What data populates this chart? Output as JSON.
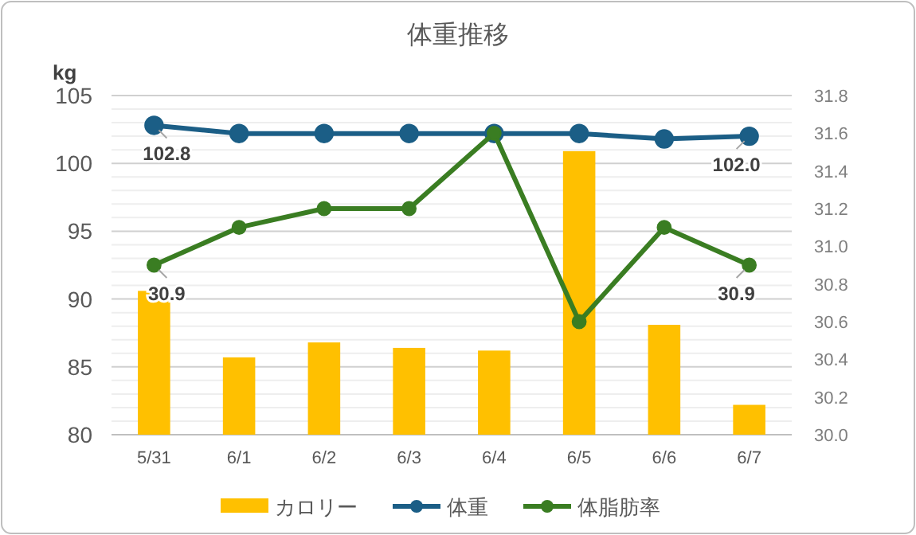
{
  "chart_data": {
    "type": "bar",
    "title": "体重推移",
    "ylabel": "kg",
    "categories": [
      "5/31",
      "6/1",
      "6/2",
      "6/3",
      "6/4",
      "6/5",
      "6/6",
      "6/7"
    ],
    "series": [
      {
        "name": "カロリー",
        "color": "#ffc000",
        "values": [
          90.6,
          85.7,
          86.8,
          86.4,
          86.2,
          100.9,
          88.1,
          82.2
        ]
      },
      {
        "name": "体重",
        "type": "line",
        "color": "#1b5e86",
        "marker": "circle",
        "values": [
          102.8,
          102.2,
          102.2,
          102.2,
          102.2,
          102.2,
          101.8,
          102.0
        ],
        "value_labels": [
          "102.8",
          null,
          null,
          null,
          null,
          null,
          null,
          "102.0"
        ]
      },
      {
        "name": "体脂肪率",
        "type": "line",
        "axis": "y2",
        "color": "#3a7d22",
        "marker": "circle",
        "values": [
          30.9,
          31.1,
          31.2,
          31.2,
          31.6,
          30.6,
          31.1,
          30.9
        ],
        "value_labels": [
          "30.9",
          null,
          null,
          null,
          null,
          null,
          null,
          "30.9"
        ]
      }
    ],
    "ylim": [
      80,
      105
    ],
    "yticks": [
      80,
      {
        "value": 81,
        "label": null
      },
      {
        "value": 82,
        "label": null
      },
      {
        "value": 83,
        "label": null
      },
      {
        "value": 84,
        "label": null
      },
      85,
      {
        "value": 86,
        "label": null
      },
      {
        "value": 87,
        "label": null
      },
      {
        "value": 88,
        "label": null
      },
      {
        "value": 89,
        "label": null
      },
      90,
      {
        "value": 91,
        "label": null
      },
      {
        "value": 92,
        "label": null
      },
      {
        "value": 93,
        "label": null
      },
      {
        "value": 94,
        "label": null
      },
      95,
      {
        "value": 96,
        "label": null
      },
      {
        "value": 97,
        "label": null
      },
      {
        "value": 98,
        "label": null
      },
      {
        "value": 99,
        "label": null
      },
      100,
      {
        "value": 101,
        "label": null
      },
      {
        "value": 102,
        "label": null
      },
      {
        "value": 103,
        "label": null
      },
      {
        "value": 104,
        "label": null
      },
      105
    ],
    "y2lim": [
      30.0,
      31.8
    ],
    "y2ticks": [
      {
        "value": 30.0,
        "label": "30.0"
      },
      {
        "value": 30.2,
        "label": "30.2"
      },
      {
        "value": 30.4,
        "label": "30.4"
      },
      {
        "value": 30.6,
        "label": "30.6"
      },
      {
        "value": 30.8,
        "label": "30.8"
      },
      {
        "value": 31.0,
        "label": "31.0"
      },
      {
        "value": 31.2,
        "label": "31.2"
      },
      {
        "value": 31.4,
        "label": "31.4"
      },
      {
        "value": 31.6,
        "label": "31.6"
      },
      {
        "value": 31.8,
        "label": "31.8"
      }
    ],
    "grid": "y",
    "legend": "bottom"
  }
}
